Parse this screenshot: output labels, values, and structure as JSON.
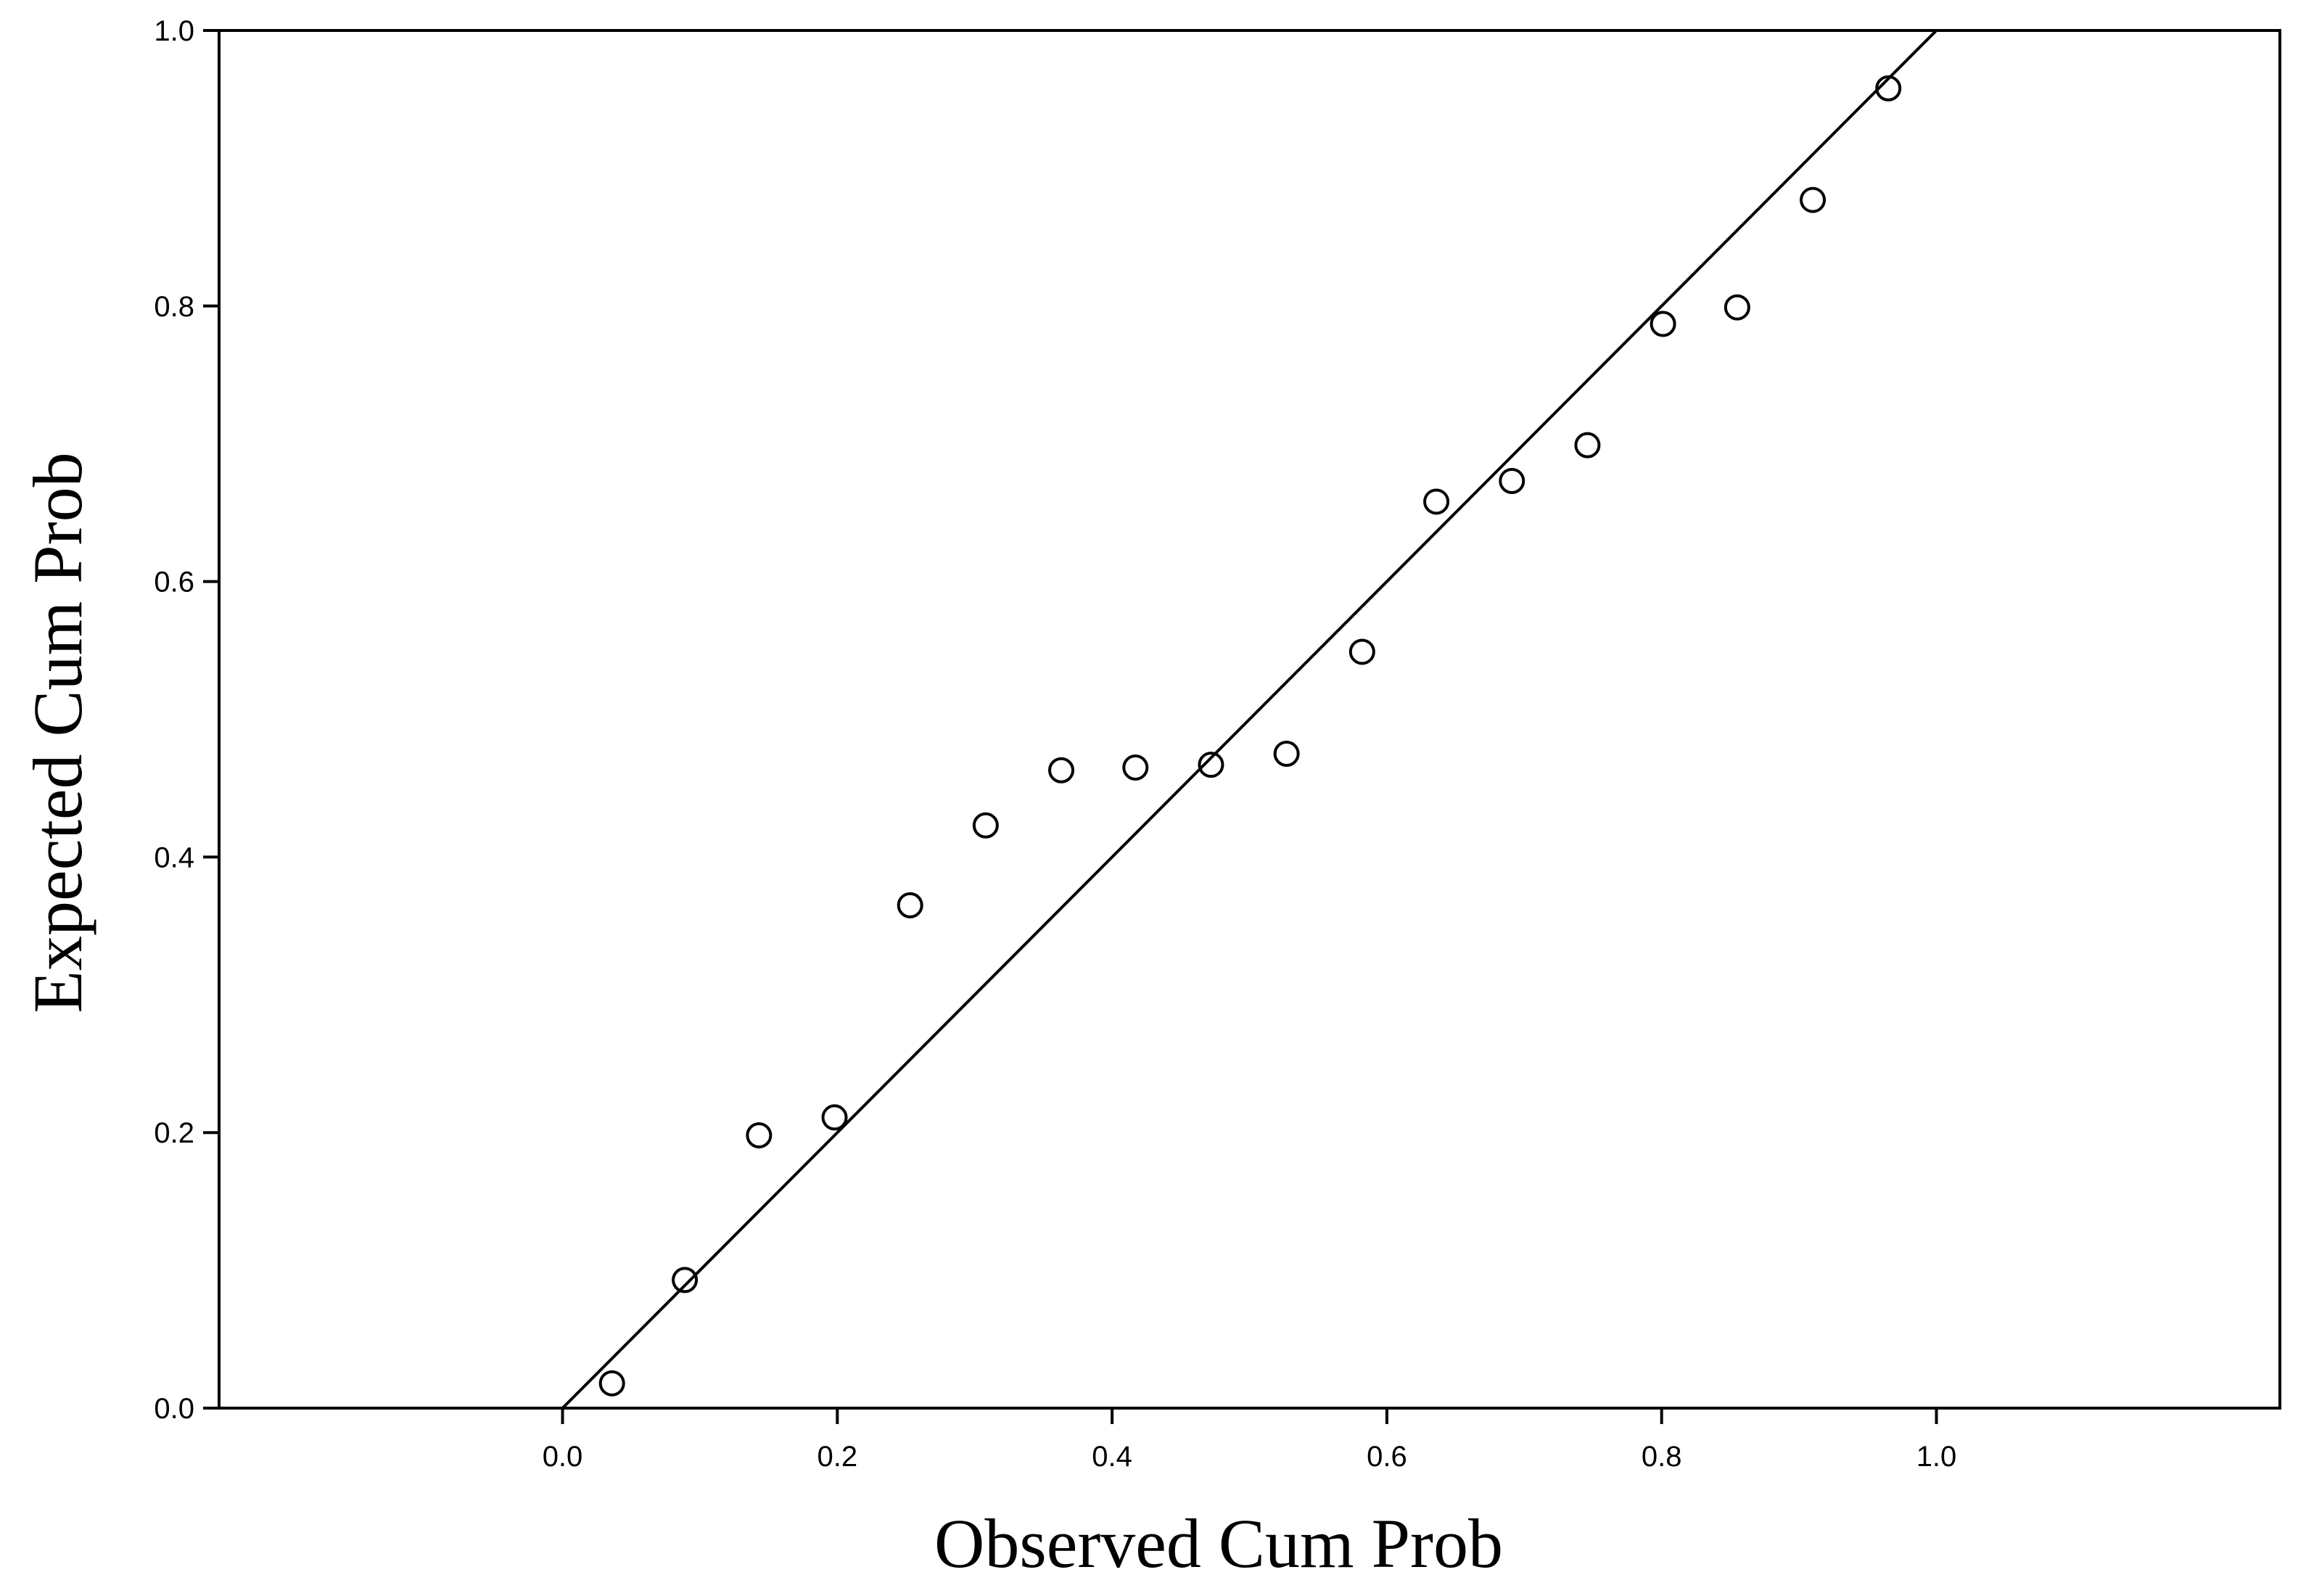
{
  "chart_data": {
    "type": "scatter",
    "title": "",
    "xlabel": "Observed Cum Prob",
    "ylabel": "Expected  Cum Prob",
    "xlim": [
      -0.25,
      1.25
    ],
    "ylim": [
      0.0,
      1.0
    ],
    "xticks": [
      "0.0",
      "0.2",
      "0.4",
      "0.6",
      "0.8",
      "1.0"
    ],
    "yticks": [
      "0.0",
      "0.2",
      "0.4",
      "0.6",
      "0.8",
      "1.0"
    ],
    "grid": false,
    "reference_line": {
      "x": [
        0.0,
        1.0
      ],
      "y": [
        0.0,
        1.0
      ]
    },
    "marker": "open-circle",
    "colors": {
      "marker": "#000000",
      "line": "#000000",
      "axes": "#000000",
      "background": "#ffffff"
    },
    "series": [
      {
        "points": [
          {
            "x": 0.036,
            "y": 0.018
          },
          {
            "x": 0.089,
            "y": 0.093
          },
          {
            "x": 0.143,
            "y": 0.198
          },
          {
            "x": 0.198,
            "y": 0.211
          },
          {
            "x": 0.253,
            "y": 0.365
          },
          {
            "x": 0.308,
            "y": 0.423
          },
          {
            "x": 0.363,
            "y": 0.463
          },
          {
            "x": 0.417,
            "y": 0.465
          },
          {
            "x": 0.472,
            "y": 0.467
          },
          {
            "x": 0.527,
            "y": 0.475
          },
          {
            "x": 0.582,
            "y": 0.549
          },
          {
            "x": 0.636,
            "y": 0.658
          },
          {
            "x": 0.691,
            "y": 0.673
          },
          {
            "x": 0.746,
            "y": 0.699
          },
          {
            "x": 0.801,
            "y": 0.787
          },
          {
            "x": 0.855,
            "y": 0.799
          },
          {
            "x": 0.91,
            "y": 0.877
          },
          {
            "x": 0.965,
            "y": 0.958
          }
        ]
      }
    ]
  }
}
